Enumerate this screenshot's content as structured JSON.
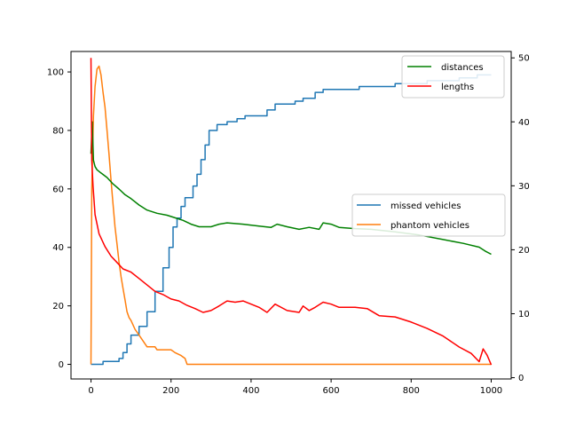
{
  "chart_data": {
    "type": "line",
    "title": "",
    "xlabel": "",
    "ylabel_left": "",
    "ylabel_right": "",
    "xlim": [
      -50,
      1050
    ],
    "xticks": [
      0,
      200,
      400,
      600,
      800,
      1000
    ],
    "ylim_left": [
      -5,
      107
    ],
    "yticks_left": [
      0,
      20,
      40,
      60,
      80,
      100
    ],
    "ylim_right": [
      -0.2,
      51
    ],
    "yticks_right": [
      0,
      10,
      20,
      30,
      40,
      50
    ],
    "grid": false,
    "legends": [
      {
        "placement": "top-right",
        "entries": [
          "distances",
          "lengths"
        ]
      },
      {
        "placement": "center-right",
        "entries": [
          "missed vehicles",
          "phantom vehicles"
        ]
      }
    ],
    "series": [
      {
        "name": "missed vehicles",
        "axis": "left",
        "color": "#1f77b4",
        "step": true,
        "points": [
          [
            0,
            0
          ],
          [
            30,
            1
          ],
          [
            70,
            2
          ],
          [
            80,
            4
          ],
          [
            90,
            7
          ],
          [
            100,
            10
          ],
          [
            120,
            13
          ],
          [
            140,
            18
          ],
          [
            160,
            25
          ],
          [
            180,
            33
          ],
          [
            195,
            40
          ],
          [
            205,
            47
          ],
          [
            215,
            50
          ],
          [
            225,
            54
          ],
          [
            235,
            57
          ],
          [
            255,
            61
          ],
          [
            265,
            65
          ],
          [
            275,
            70
          ],
          [
            285,
            75
          ],
          [
            295,
            80
          ],
          [
            315,
            82
          ],
          [
            340,
            83
          ],
          [
            365,
            84
          ],
          [
            385,
            85
          ],
          [
            440,
            87
          ],
          [
            460,
            89
          ],
          [
            510,
            90
          ],
          [
            530,
            91
          ],
          [
            560,
            93
          ],
          [
            580,
            94
          ],
          [
            670,
            95
          ],
          [
            760,
            96
          ],
          [
            840,
            97
          ],
          [
            920,
            98
          ],
          [
            965,
            99
          ],
          [
            1000,
            99
          ]
        ]
      },
      {
        "name": "phantom vehicles",
        "axis": "left",
        "color": "#ff7f0e",
        "step": false,
        "points": [
          [
            0,
            0
          ],
          [
            2,
            60
          ],
          [
            6,
            85
          ],
          [
            10,
            95
          ],
          [
            15,
            101
          ],
          [
            20,
            102
          ],
          [
            25,
            99
          ],
          [
            30,
            93
          ],
          [
            35,
            88
          ],
          [
            40,
            80
          ],
          [
            45,
            72
          ],
          [
            50,
            63
          ],
          [
            55,
            55
          ],
          [
            60,
            47
          ],
          [
            65,
            41
          ],
          [
            70,
            35
          ],
          [
            75,
            30
          ],
          [
            80,
            26
          ],
          [
            85,
            22
          ],
          [
            90,
            18
          ],
          [
            95,
            16
          ],
          [
            100,
            15
          ],
          [
            110,
            12
          ],
          [
            120,
            10
          ],
          [
            130,
            8
          ],
          [
            140,
            6
          ],
          [
            160,
            6
          ],
          [
            165,
            5
          ],
          [
            200,
            5
          ],
          [
            210,
            4
          ],
          [
            225,
            3
          ],
          [
            235,
            2
          ],
          [
            240,
            0
          ],
          [
            1000,
            0
          ]
        ]
      },
      {
        "name": "distances",
        "axis": "right",
        "color": "#008000",
        "step": false,
        "points": [
          [
            0,
            35
          ],
          [
            3,
            40
          ],
          [
            6,
            34
          ],
          [
            10,
            33
          ],
          [
            15,
            32.5
          ],
          [
            25,
            32
          ],
          [
            40,
            31.3
          ],
          [
            55,
            30.3
          ],
          [
            70,
            29.5
          ],
          [
            85,
            28.6
          ],
          [
            100,
            28
          ],
          [
            120,
            27
          ],
          [
            140,
            26.2
          ],
          [
            165,
            25.7
          ],
          [
            190,
            25.4
          ],
          [
            210,
            25
          ],
          [
            230,
            24.6
          ],
          [
            250,
            24
          ],
          [
            270,
            23.6
          ],
          [
            300,
            23.6
          ],
          [
            320,
            24
          ],
          [
            340,
            24.2
          ],
          [
            380,
            24
          ],
          [
            420,
            23.7
          ],
          [
            450,
            23.5
          ],
          [
            465,
            24
          ],
          [
            490,
            23.6
          ],
          [
            520,
            23.2
          ],
          [
            545,
            23.5
          ],
          [
            570,
            23.2
          ],
          [
            580,
            24.2
          ],
          [
            600,
            24
          ],
          [
            620,
            23.5
          ],
          [
            660,
            23.3
          ],
          [
            700,
            23.2
          ],
          [
            760,
            22.8
          ],
          [
            820,
            22.3
          ],
          [
            880,
            21.6
          ],
          [
            930,
            21
          ],
          [
            970,
            20.4
          ],
          [
            985,
            19.8
          ],
          [
            1000,
            19.3
          ]
        ]
      },
      {
        "name": "lengths",
        "axis": "right",
        "color": "#ff0000",
        "step": false,
        "points": [
          [
            0,
            50
          ],
          [
            2,
            34
          ],
          [
            5,
            30
          ],
          [
            10,
            25.5
          ],
          [
            20,
            22.5
          ],
          [
            35,
            20.5
          ],
          [
            50,
            19
          ],
          [
            65,
            18
          ],
          [
            80,
            17
          ],
          [
            100,
            16.5
          ],
          [
            120,
            15.5
          ],
          [
            140,
            14.5
          ],
          [
            160,
            13.5
          ],
          [
            180,
            13
          ],
          [
            200,
            12.3
          ],
          [
            220,
            12
          ],
          [
            240,
            11.3
          ],
          [
            260,
            10.8
          ],
          [
            280,
            10.2
          ],
          [
            300,
            10.5
          ],
          [
            320,
            11.2
          ],
          [
            340,
            12
          ],
          [
            360,
            11.8
          ],
          [
            380,
            12
          ],
          [
            400,
            11.5
          ],
          [
            420,
            11
          ],
          [
            440,
            10.2
          ],
          [
            460,
            11.5
          ],
          [
            490,
            10.5
          ],
          [
            520,
            10.2
          ],
          [
            530,
            11.2
          ],
          [
            545,
            10.5
          ],
          [
            560,
            11
          ],
          [
            580,
            11.8
          ],
          [
            600,
            11.5
          ],
          [
            620,
            11
          ],
          [
            660,
            11
          ],
          [
            690,
            10.8
          ],
          [
            720,
            9.7
          ],
          [
            760,
            9.5
          ],
          [
            800,
            8.7
          ],
          [
            840,
            7.7
          ],
          [
            880,
            6.5
          ],
          [
            920,
            4.8
          ],
          [
            950,
            3.8
          ],
          [
            970,
            2.5
          ],
          [
            980,
            4.5
          ],
          [
            990,
            3.5
          ],
          [
            1000,
            2
          ]
        ]
      }
    ]
  }
}
